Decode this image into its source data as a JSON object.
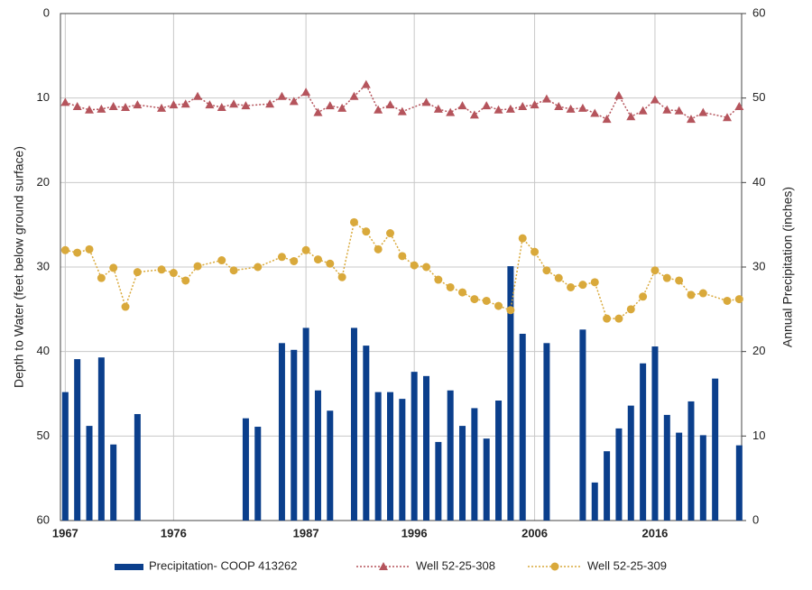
{
  "chart_data": {
    "type": "combo",
    "y_label": "Depth to Water (feet below ground surface)",
    "y2_label": "Annual Precipitation (inches)",
    "xlim": [
      1966.6,
      2023.2
    ],
    "xticks": [
      1967,
      1976,
      1987,
      1996,
      2006,
      2016
    ],
    "ylim": [
      0,
      60
    ],
    "y_reversed": true,
    "yticks": [
      0,
      10,
      20,
      30,
      40,
      50,
      60
    ],
    "y2lim": [
      0,
      60
    ],
    "y2ticks": [
      0,
      10,
      20,
      30,
      40,
      50,
      60
    ],
    "grid": true,
    "legend": "bottom",
    "series": [
      {
        "name": "Precipitation- COOP 413262",
        "type": "bar",
        "axis": "y2",
        "color": "#0b3f8c",
        "x": [
          1967,
          1968,
          1969,
          1970,
          1971,
          1973,
          1982,
          1983,
          1985,
          1986,
          1987,
          1988,
          1989,
          1991,
          1992,
          1993,
          1994,
          1995,
          1996,
          1997,
          1998,
          1999,
          2000,
          2001,
          2002,
          2003,
          2004,
          2005,
          2007,
          2010,
          2011,
          2012,
          2013,
          2014,
          2015,
          2016,
          2017,
          2018,
          2019,
          2020,
          2021,
          2023
        ],
        "values": [
          15.2,
          19.1,
          11.2,
          19.3,
          9.0,
          12.6,
          12.1,
          11.1,
          21.0,
          20.2,
          22.8,
          15.4,
          13.0,
          22.8,
          20.7,
          15.2,
          15.2,
          14.4,
          17.6,
          17.1,
          9.3,
          15.4,
          11.2,
          13.3,
          9.7,
          14.2,
          30.1,
          22.1,
          21.0,
          22.6,
          4.5,
          8.2,
          10.9,
          13.6,
          18.6,
          20.6,
          12.5,
          10.4,
          14.1,
          10.1,
          16.8,
          8.9
        ]
      },
      {
        "name": "Well 52-25-308",
        "type": "line",
        "marker": "triangle",
        "color": "#b5545c",
        "x": [
          1967,
          1968,
          1969,
          1970,
          1971,
          1972,
          1973,
          1975,
          1976,
          1977,
          1978,
          1979,
          1980,
          1981,
          1982,
          1984,
          1985,
          1986,
          1987,
          1988,
          1989,
          1990,
          1991,
          1992,
          1993,
          1994,
          1995,
          1997,
          1998,
          1999,
          2000,
          2001,
          2002,
          2003,
          2004,
          2005,
          2006,
          2007,
          2008,
          2009,
          2010,
          2011,
          2012,
          2013,
          2014,
          2015,
          2016,
          2017,
          2018,
          2019,
          2020,
          2022,
          2023
        ],
        "values": [
          10.5,
          11.0,
          11.4,
          11.3,
          11.0,
          11.1,
          10.8,
          11.2,
          10.8,
          10.7,
          9.8,
          10.8,
          11.1,
          10.7,
          10.9,
          10.7,
          9.8,
          10.4,
          9.3,
          11.7,
          10.9,
          11.2,
          9.8,
          8.4,
          11.4,
          10.8,
          11.6,
          10.5,
          11.3,
          11.7,
          10.9,
          12.0,
          10.9,
          11.4,
          11.3,
          11.0,
          10.8,
          10.1,
          11.0,
          11.3,
          11.2,
          11.8,
          12.5,
          9.7,
          12.2,
          11.5,
          10.2,
          11.4,
          11.5,
          12.5,
          11.7,
          12.3,
          11.0
        ]
      },
      {
        "name": "Well 52-25-309",
        "type": "line",
        "marker": "circle",
        "color": "#d9a93b",
        "x": [
          1967,
          1968,
          1969,
          1970,
          1971,
          1972,
          1973,
          1975,
          1976,
          1977,
          1978,
          1980,
          1981,
          1983,
          1985,
          1986,
          1987,
          1988,
          1989,
          1990,
          1991,
          1992,
          1993,
          1994,
          1995,
          1996,
          1997,
          1998,
          1999,
          2000,
          2001,
          2002,
          2003,
          2004,
          2005,
          2006,
          2007,
          2008,
          2009,
          2010,
          2011,
          2012,
          2013,
          2014,
          2015,
          2016,
          2017,
          2018,
          2019,
          2020,
          2022,
          2023
        ],
        "values": [
          28.0,
          28.3,
          27.9,
          31.3,
          30.1,
          34.7,
          30.6,
          30.3,
          30.7,
          31.6,
          29.9,
          29.2,
          30.4,
          30.0,
          28.8,
          29.3,
          28.0,
          29.1,
          29.6,
          31.2,
          24.7,
          25.8,
          27.9,
          26.0,
          28.7,
          29.8,
          30.0,
          31.5,
          32.4,
          33.0,
          33.8,
          34.0,
          34.6,
          35.1,
          26.6,
          28.2,
          30.4,
          31.3,
          32.4,
          32.1,
          31.8,
          36.1,
          36.1,
          35.0,
          33.5,
          30.4,
          31.3,
          31.6,
          33.3,
          33.1,
          34.0,
          33.8
        ]
      }
    ]
  }
}
